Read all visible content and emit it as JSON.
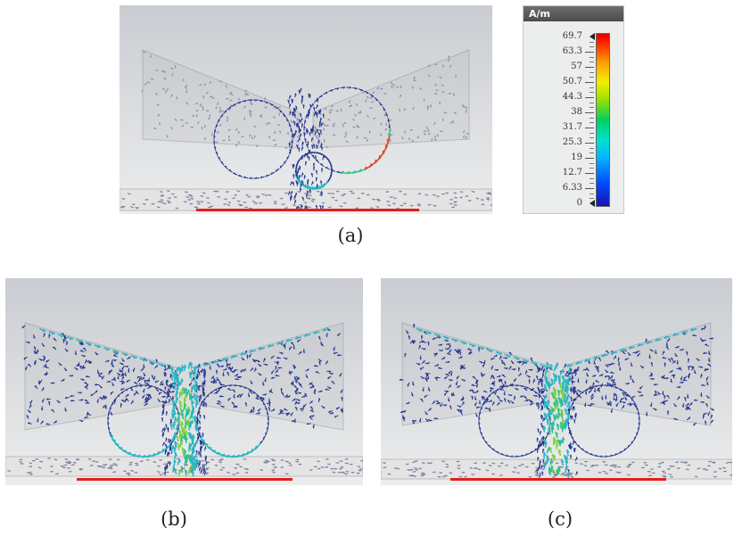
{
  "captions": {
    "a": "(a)",
    "b": "(b)",
    "c": "(c)"
  },
  "legend": {
    "unit": "A/m",
    "ticks": [
      "69.7",
      "63.3",
      "57",
      "50.7",
      "44.3",
      "38",
      "31.7",
      "25.3",
      "19",
      "12.7",
      "6.33",
      "0"
    ],
    "max": 69.7,
    "min": 0,
    "colormap": [
      "#1a10b0",
      "#0050ff",
      "#00b4ff",
      "#00e0d0",
      "#00d060",
      "#9ee000",
      "#f0f000",
      "#ff9a00",
      "#ff2a00",
      "#e00000"
    ]
  },
  "colors": {
    "feed_line": "#e0201c",
    "low_field": "#23348f",
    "mid_field": "#2bb6c4",
    "high_field": "#e0462a"
  }
}
